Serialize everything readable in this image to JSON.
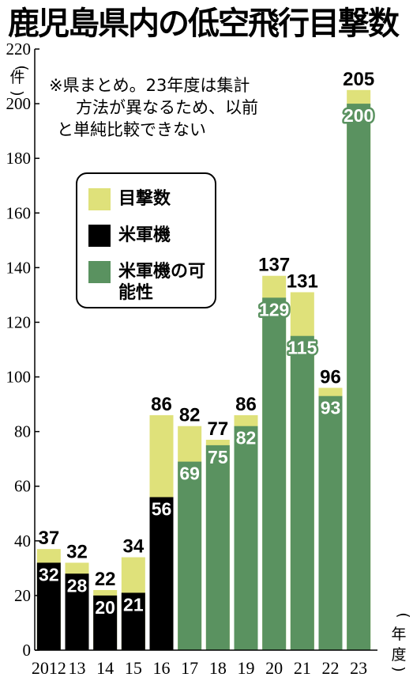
{
  "title": "鹿児島県内の低空飛行目撃数",
  "note": [
    "※県まとめ。23年度は集計",
    "方法が異なるため、以前",
    "と単純比較できない"
  ],
  "y_unit": "件",
  "x_unit": "年度",
  "legend": [
    {
      "label": "目撃数",
      "color": "#dfe17a"
    },
    {
      "label": "米軍機",
      "color": "#000000"
    },
    {
      "label": "米軍機の可能性",
      "color": "#5a9260"
    }
  ],
  "chart_data": {
    "type": "bar",
    "title": "鹿児島県内の低空飛行目撃数",
    "xlabel": "年度",
    "ylabel": "件",
    "ylim": [
      0,
      220
    ],
    "yticks": [
      0,
      20,
      40,
      60,
      80,
      100,
      120,
      140,
      160,
      180,
      200,
      220
    ],
    "categories": [
      "2012",
      "13",
      "14",
      "15",
      "16",
      "17",
      "18",
      "19",
      "20",
      "21",
      "22",
      "23"
    ],
    "series": [
      {
        "name": "目撃数",
        "values": [
          37,
          32,
          22,
          34,
          86,
          82,
          77,
          86,
          137,
          131,
          96,
          205
        ]
      },
      {
        "name": "米軍機",
        "values": [
          32,
          28,
          20,
          21,
          56,
          null,
          null,
          null,
          null,
          null,
          null,
          null
        ]
      },
      {
        "name": "米軍機の可能性",
        "values": [
          null,
          null,
          null,
          null,
          null,
          69,
          75,
          82,
          129,
          115,
          93,
          200
        ]
      }
    ],
    "colors": {
      "目撃数": "#dfe17a",
      "米軍機": "#000000",
      "米軍機の可能性": "#5a9260"
    }
  }
}
